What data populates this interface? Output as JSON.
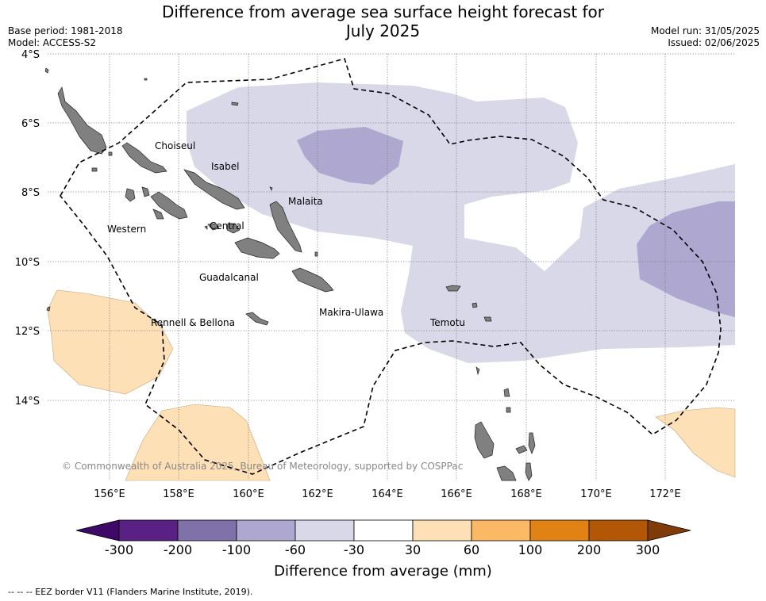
{
  "title": {
    "line1": "Difference from average sea surface height forecast for",
    "line2": "July 2025"
  },
  "meta": {
    "base_period": "Base period: 1981-2018",
    "model": "Model: ACCESS-S2",
    "model_run": "Model run: 31/05/2025",
    "issued": "Issued: 02/06/2025"
  },
  "map": {
    "lat_labels": [
      "4°S",
      "6°S",
      "8°S",
      "10°S",
      "12°S",
      "14°S"
    ],
    "lon_labels": [
      "156°E",
      "158°E",
      "160°E",
      "162°E",
      "164°E",
      "166°E",
      "168°E",
      "170°E",
      "172°E"
    ],
    "regions": [
      "Choiseul",
      "Isabel",
      "Malaita",
      "Western",
      "Central",
      "Guadalcanal",
      "Makira-Ulawa",
      "Rennell & Bellona",
      "Temotu"
    ],
    "copyright": "© Commonwealth of Australia 2025, Bureau of Meteorology, supported by COSPPac",
    "colors": {
      "land": "#808080",
      "anomaly_minus_60_30": "#d8d8e9",
      "anomaly_minus_100_60": "#aea8d0",
      "anomaly_30_60": "#fde0b5",
      "eez_line": "#000000"
    }
  },
  "colorbar": {
    "ticks": [
      "-300",
      "-200",
      "-100",
      "-60",
      "-30",
      "30",
      "60",
      "100",
      "200",
      "300"
    ],
    "colors": [
      "#3f0a67",
      "#5a2185",
      "#8071a8",
      "#aea8d0",
      "#d8d8e9",
      "#ffffff",
      "#fde0b5",
      "#fbb865",
      "#e08214",
      "#b25706",
      "#7f3b08"
    ],
    "label": "Difference from average (mm)"
  },
  "legend_note": "--  --  -- EEZ border V11 (Flanders Marine Institute, 2019)."
}
